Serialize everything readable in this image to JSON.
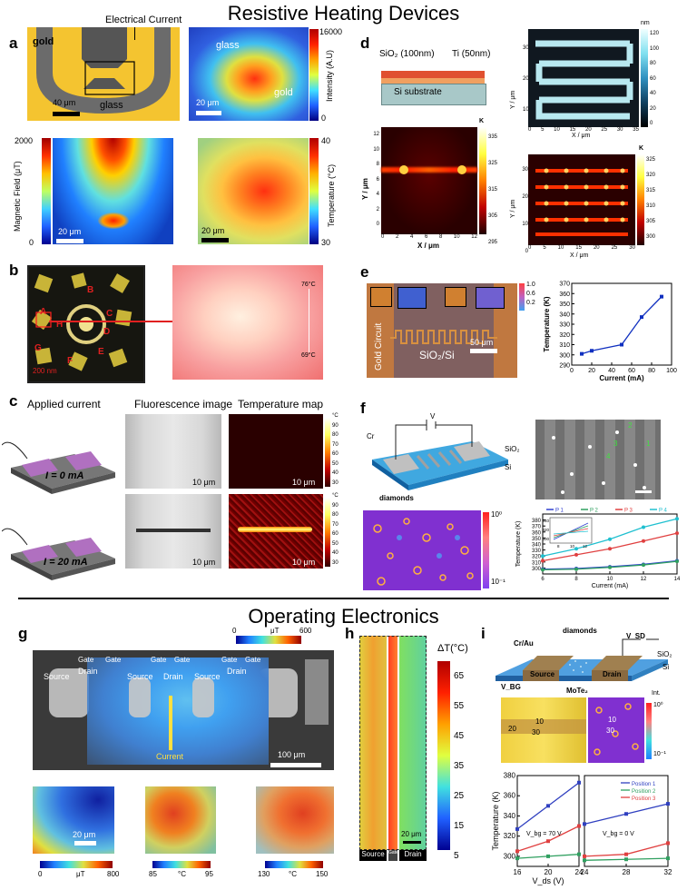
{
  "titles": {
    "top": "Resistive Heating Devices",
    "bottom": "Operating Electronics"
  },
  "panel_labels": {
    "a": "a",
    "b": "b",
    "c": "c",
    "d": "d",
    "e": "e",
    "f": "f",
    "g": "g",
    "h": "h",
    "i": "i"
  },
  "a": {
    "electrical_current": "Electrical Current",
    "gold": "gold",
    "glass": "glass",
    "scale40": "40 μm",
    "scale20": "20 μm",
    "intensity_label": "Intensity (A.U)",
    "int_max": "16000",
    "int_min": "0",
    "mag_label": "Magnetic Field (μT)",
    "mag_max": "2000",
    "mag_min": "0",
    "temp_label": "Temperature (°C)",
    "temp_max": "40",
    "temp_min": "30"
  },
  "b": {
    "letters": [
      "A",
      "B",
      "C",
      "D",
      "E",
      "F",
      "G",
      "H"
    ],
    "scale": "200 nm",
    "t_hi": "76°C",
    "t_lo": "69°C"
  },
  "c": {
    "headers": [
      "Applied current",
      "Fluorescence image",
      "Temperature map"
    ],
    "i0": "I = 0 mA",
    "i20": "I = 20 mA",
    "scale": "10 μm",
    "cb_unit": "°C",
    "cb_ticks": [
      "90",
      "80",
      "70",
      "60",
      "50",
      "40",
      "30"
    ]
  },
  "d": {
    "sio2": "SiO₂ (100nm)",
    "ti": "Ti (50nm)",
    "substrate": "Si substrate",
    "xlabel": "X / μm",
    "ylabel": "Y / μm",
    "nm": "nm",
    "k": "K",
    "nm_ticks": [
      "120",
      "100",
      "80",
      "60",
      "40",
      "20",
      "0"
    ],
    "k1_ticks": [
      "335",
      "325",
      "315",
      "305",
      "295"
    ],
    "k2_ticks": [
      "325",
      "320",
      "315",
      "310",
      "305",
      "300"
    ],
    "top_x": [
      "0",
      "5",
      "10",
      "15",
      "20",
      "25",
      "30",
      "35"
    ],
    "top_y": [
      "30",
      "20",
      "10",
      "0"
    ],
    "bl_x": [
      "0",
      "2",
      "4",
      "6",
      "8",
      "10",
      "12"
    ],
    "bl_y": [
      "12",
      "10",
      "8",
      "6",
      "4",
      "2",
      "0"
    ],
    "br_x": [
      "0",
      "5",
      "10",
      "15",
      "20",
      "25",
      "30"
    ],
    "br_y": [
      "30",
      "20",
      "10",
      "0"
    ]
  },
  "e": {
    "gold_circuit": "Gold Circuit",
    "substrate": "SiO₂/Si",
    "scale": "50 μm",
    "cb_ticks": [
      "1.0",
      "0.6",
      "0.2"
    ]
  },
  "f": {
    "v": "V",
    "cr": "Cr",
    "sio2": "SiO₂",
    "si": "Si",
    "diamonds": "diamonds",
    "labels": [
      "1",
      "2",
      "3",
      "4"
    ],
    "map_hi": "10⁰",
    "map_lo": "10⁻¹"
  },
  "g": {
    "scale_bar_label": "μT",
    "scale_lo": "0",
    "scale_hi": "600",
    "top_labels": [
      "Gate",
      "Gate",
      "Gate",
      "Gate",
      "Gate",
      "Gate"
    ],
    "device_labels": [
      "Source",
      "Drain",
      "Source",
      "Drain",
      "Source",
      "Drain"
    ],
    "current": "Current",
    "scale100": "100 μm",
    "scale20": "20 μm",
    "cb1": {
      "lo": "0",
      "hi": "800",
      "unit": "μT"
    },
    "cb2": {
      "lo": "85",
      "hi": "95",
      "unit": "°C"
    },
    "cb3": {
      "lo": "130",
      "hi": "150",
      "unit": "°C"
    }
  },
  "h": {
    "label": "ΔT(°C)",
    "ticks": [
      "65",
      "55",
      "45",
      "35",
      "25",
      "15",
      "5"
    ],
    "source": "Source",
    "gate": "Gate",
    "drain": "Drain",
    "scale": "20 μm"
  },
  "i": {
    "crau": "Cr/Au",
    "diamonds": "diamonds",
    "vsd": "V_SD",
    "sio2": "SiO₂",
    "si": "Si",
    "source": "Source",
    "drain": "Drain",
    "vbg": "V_BG",
    "mote2": "MoTe₂",
    "int_label": "Int.",
    "int_hi": "10⁰",
    "int_lo": "10⁻¹",
    "map_nums": [
      "20",
      "10",
      "30",
      "10",
      "30"
    ]
  },
  "chart_data": [
    {
      "id": "e-temperature",
      "type": "line",
      "x": [
        10,
        20,
        50,
        70,
        90
      ],
      "values": [
        301,
        304,
        310,
        337,
        357
      ],
      "xlabel": "Current (mA)",
      "ylabel": "Temperature (K)",
      "xlim": [
        0,
        100
      ],
      "ylim": [
        290,
        370
      ],
      "xticks": [
        "0",
        "20",
        "40",
        "60",
        "80",
        "100"
      ],
      "yticks": [
        "290",
        "300",
        "310",
        "320",
        "330",
        "340",
        "350",
        "360",
        "370"
      ]
    },
    {
      "id": "f-temperature",
      "type": "line",
      "x": [
        6,
        8,
        10,
        12,
        14
      ],
      "series": [
        {
          "name": "P 1",
          "values": [
            298,
            299,
            302,
            306,
            312
          ],
          "color": "#3040d0"
        },
        {
          "name": "P 2",
          "values": [
            297,
            298,
            301,
            305,
            311
          ],
          "color": "#30a060"
        },
        {
          "name": "P 3",
          "values": [
            312,
            322,
            332,
            345,
            358
          ],
          "color": "#e04040"
        },
        {
          "name": "P 4",
          "values": [
            320,
            332,
            348,
            368,
            382
          ],
          "color": "#20c0d0"
        }
      ],
      "xlabel": "Current (mA)",
      "ylabel": "Temperature (K)",
      "xlim": [
        6,
        14
      ],
      "ylim": [
        290,
        390
      ],
      "xticks": [
        "6",
        "8",
        "10",
        "12",
        "14"
      ],
      "yticks": [
        "300",
        "310",
        "320",
        "330",
        "340",
        "350",
        "360",
        "370",
        "380"
      ],
      "inset_ticks": {
        "y": [
          "340",
          "320",
          "300"
        ],
        "x": [
          "8",
          "10",
          "12"
        ]
      }
    },
    {
      "id": "i-left",
      "type": "line",
      "x": [
        16,
        20,
        24
      ],
      "series": [
        {
          "name": "Position 1",
          "values": [
            327,
            350,
            373
          ],
          "color": "#3040c0"
        },
        {
          "name": "Position 2",
          "values": [
            298,
            300,
            302
          ],
          "color": "#30a060"
        },
        {
          "name": "Position 3",
          "values": [
            305,
            315,
            330
          ],
          "color": "#e04040"
        }
      ],
      "annotation": "V_bg = 70 V",
      "xlabel": "V_ds (V)",
      "ylabel": "Temperature (K)",
      "xlim": [
        16,
        24
      ],
      "ylim": [
        290,
        380
      ],
      "xticks": [
        "16",
        "20",
        "24"
      ],
      "yticks": [
        "300",
        "320",
        "340",
        "360",
        "380"
      ]
    },
    {
      "id": "i-right",
      "type": "line",
      "x": [
        24,
        28,
        32
      ],
      "series": [
        {
          "name": "Position 1",
          "values": [
            332,
            342,
            352
          ],
          "color": "#3040c0"
        },
        {
          "name": "Position 2",
          "values": [
            296,
            297,
            298
          ],
          "color": "#30a060"
        },
        {
          "name": "Position 3",
          "values": [
            300,
            302,
            313
          ],
          "color": "#e04040"
        }
      ],
      "annotation": "V_bg = 0 V",
      "xlabel": "",
      "ylabel": "",
      "xlim": [
        24,
        32
      ],
      "ylim": [
        290,
        380
      ],
      "xticks": [
        "24",
        "28",
        "32"
      ],
      "yticks": [],
      "legend": [
        "Position 1",
        "Position 2",
        "Position 3"
      ]
    }
  ]
}
